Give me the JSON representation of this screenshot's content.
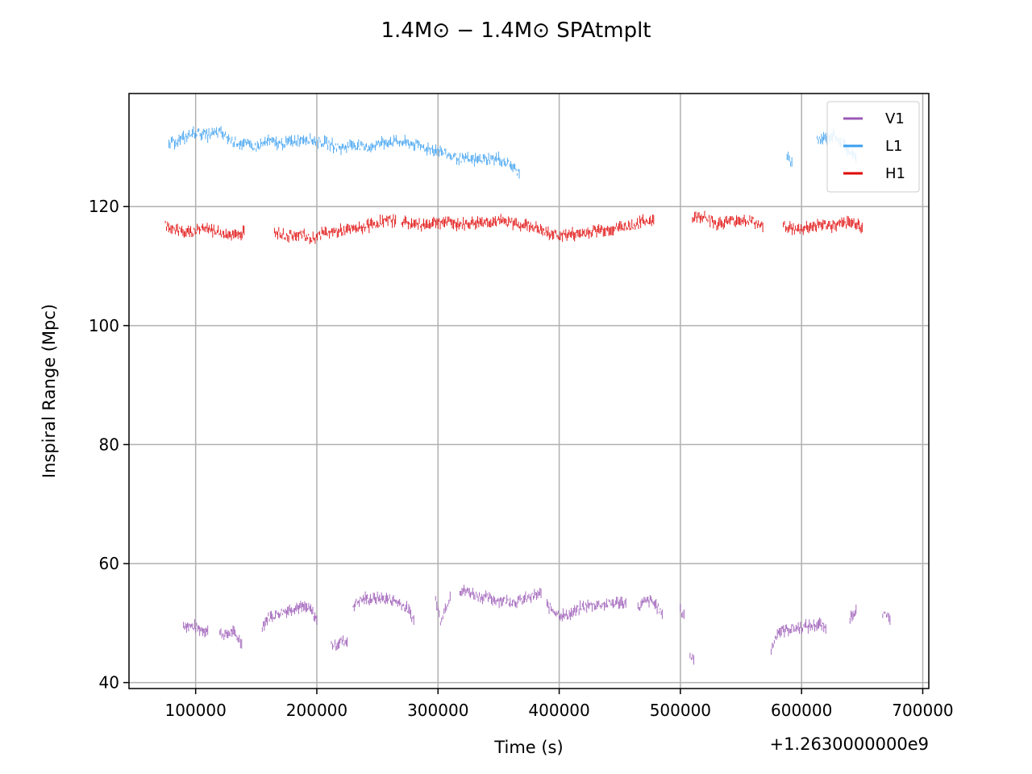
{
  "chart_data": {
    "type": "scatter",
    "title": "1.4M⊙ − 1.4M⊙ SPAtmplt",
    "xlabel": "Time (s)",
    "ylabel": "Inspiral Range (Mpc)",
    "x_offset_label": "+1.2630000000e9",
    "xlim": [
      45000,
      705000
    ],
    "ylim": [
      39,
      139
    ],
    "xticks": [
      100000,
      200000,
      300000,
      400000,
      500000,
      600000,
      700000
    ],
    "xtick_labels": [
      "100000",
      "200000",
      "300000",
      "400000",
      "500000",
      "600000",
      "700000"
    ],
    "yticks": [
      40,
      60,
      80,
      100,
      120
    ],
    "ytick_labels": [
      "40",
      "60",
      "80",
      "100",
      "120"
    ],
    "grid": true,
    "legend_position": "top-right",
    "series": [
      {
        "name": "V1",
        "color": "#9b59b6",
        "segments": [
          {
            "x": [
              90000,
              95000,
              100000,
              105000,
              110000
            ],
            "y": [
              49.7,
              49.5,
              49.3,
              48.9,
              48.8
            ]
          },
          {
            "x": [
              120000,
              125000,
              130000,
              135000,
              138000
            ],
            "y": [
              48.3,
              48.0,
              48.6,
              47.5,
              46.5
            ]
          },
          {
            "x": [
              155000,
              160000,
              165000,
              170000,
              175000,
              180000,
              185000,
              190000,
              195000,
              200000
            ],
            "y": [
              49.5,
              51.0,
              51.3,
              51.8,
              52.1,
              52.5,
              52.7,
              52.6,
              52.2,
              50.5
            ]
          },
          {
            "x": [
              212000,
              215000,
              220000,
              225000
            ],
            "y": [
              46.5,
              46.2,
              47.0,
              46.8
            ]
          },
          {
            "x": [
              230000,
              235000,
              240000,
              245000,
              250000,
              255000,
              260000,
              265000,
              270000,
              275000,
              280000
            ],
            "y": [
              53.0,
              53.8,
              54.1,
              54.0,
              54.2,
              54.1,
              54.0,
              53.7,
              53.2,
              52.3,
              50.5
            ]
          },
          {
            "x": [
              298000,
              302000,
              306000,
              310000
            ],
            "y": [
              54.0,
              50.5,
              52.5,
              54.5
            ]
          },
          {
            "x": [
              318000,
              325000,
              335000,
              345000,
              355000,
              365000,
              375000,
              385000
            ],
            "y": [
              55.5,
              55.3,
              54.5,
              54.0,
              53.8,
              53.6,
              54.2,
              55.0
            ]
          },
          {
            "x": [
              390000,
              395000,
              400000,
              405000,
              410000,
              420000,
              430000,
              440000,
              450000,
              455000
            ],
            "y": [
              53.0,
              52.2,
              51.5,
              51.2,
              51.6,
              52.8,
              53.1,
              53.2,
              53.5,
              53.4
            ]
          },
          {
            "x": [
              465000,
              470000,
              475000,
              480000,
              485000
            ],
            "y": [
              52.5,
              53.5,
              53.8,
              53.0,
              51.5
            ]
          },
          {
            "x": [
              500000,
              503000
            ],
            "y": [
              52.0,
              51.5
            ]
          },
          {
            "x": [
              508000,
              511000
            ],
            "y": [
              44.5,
              43.8
            ]
          },
          {
            "x": [
              575000,
              580000,
              585000,
              590000,
              600000,
              610000,
              615000,
              620000
            ],
            "y": [
              45.5,
              48.5,
              48.8,
              49.0,
              49.3,
              49.6,
              49.8,
              49.0
            ]
          },
          {
            "x": [
              640000,
              645000
            ],
            "y": [
              51.0,
              52.3
            ]
          },
          {
            "x": [
              667000,
              670000,
              673000
            ],
            "y": [
              51.8,
              51.0,
              50.5
            ]
          }
        ]
      },
      {
        "name": "L1",
        "color": "#3a9ff0",
        "segments": [
          {
            "x": [
              78000,
              90000,
              100000,
              110000,
              120000,
              130000,
              140000,
              150000,
              160000,
              170000,
              180000,
              190000,
              200000,
              210000,
              220000,
              230000,
              240000,
              250000,
              260000,
              270000,
              280000,
              290000,
              300000,
              310000,
              320000,
              330000,
              340000,
              350000,
              360000,
              367000
            ],
            "y": [
              130.5,
              131.5,
              132.5,
              132.0,
              132.5,
              131.0,
              130.5,
              130.0,
              131.0,
              130.5,
              131.0,
              131.5,
              131.0,
              130.5,
              129.8,
              130.5,
              129.8,
              130.5,
              131.0,
              130.8,
              130.5,
              129.8,
              129.5,
              128.5,
              128.0,
              127.8,
              128.0,
              128.0,
              127.0,
              125.5
            ]
          },
          {
            "x": [
              588000,
              592000
            ],
            "y": [
              128.5,
              127.5
            ]
          },
          {
            "x": [
              613000,
              620000,
              628000,
              632000,
              645000
            ],
            "y": [
              131.0,
              131.5,
              132.0,
              131.0,
              128.0
            ]
          }
        ]
      },
      {
        "name": "H1",
        "color": "#e00000",
        "segments": [
          {
            "x": [
              75000,
              85000,
              95000,
              105000,
              115000,
              125000,
              135000,
              140000
            ],
            "y": [
              117.0,
              116.0,
              115.5,
              116.5,
              116.0,
              115.5,
              115.0,
              116.0
            ]
          },
          {
            "x": [
              165000,
              175000,
              185000,
              195000,
              205000,
              215000,
              225000,
              235000,
              245000,
              255000,
              265000
            ],
            "y": [
              116.0,
              115.0,
              115.5,
              114.5,
              115.5,
              115.8,
              116.0,
              116.3,
              117.0,
              117.5,
              117.8
            ]
          },
          {
            "x": [
              270000,
              280000,
              290000,
              300000,
              310000,
              320000,
              330000,
              340000,
              350000,
              360000,
              370000,
              380000,
              390000,
              400000,
              410000,
              420000,
              430000,
              440000,
              450000,
              460000,
              470000,
              478000
            ],
            "y": [
              117.5,
              117.0,
              117.0,
              117.5,
              117.3,
              117.0,
              117.3,
              117.5,
              117.5,
              117.3,
              117.0,
              116.5,
              115.5,
              115.2,
              115.3,
              115.5,
              116.0,
              116.2,
              116.5,
              116.8,
              117.5,
              117.8
            ]
          },
          {
            "x": [
              510000,
              520000,
              530000,
              540000,
              550000,
              560000,
              568000
            ],
            "y": [
              118.0,
              118.5,
              117.0,
              117.5,
              117.8,
              117.5,
              116.5
            ]
          },
          {
            "x": [
              585000,
              595000,
              605000,
              615000,
              625000,
              635000,
              645000,
              650000
            ],
            "y": [
              117.0,
              116.0,
              116.5,
              117.0,
              116.8,
              117.0,
              117.3,
              116.5
            ]
          }
        ]
      }
    ]
  }
}
